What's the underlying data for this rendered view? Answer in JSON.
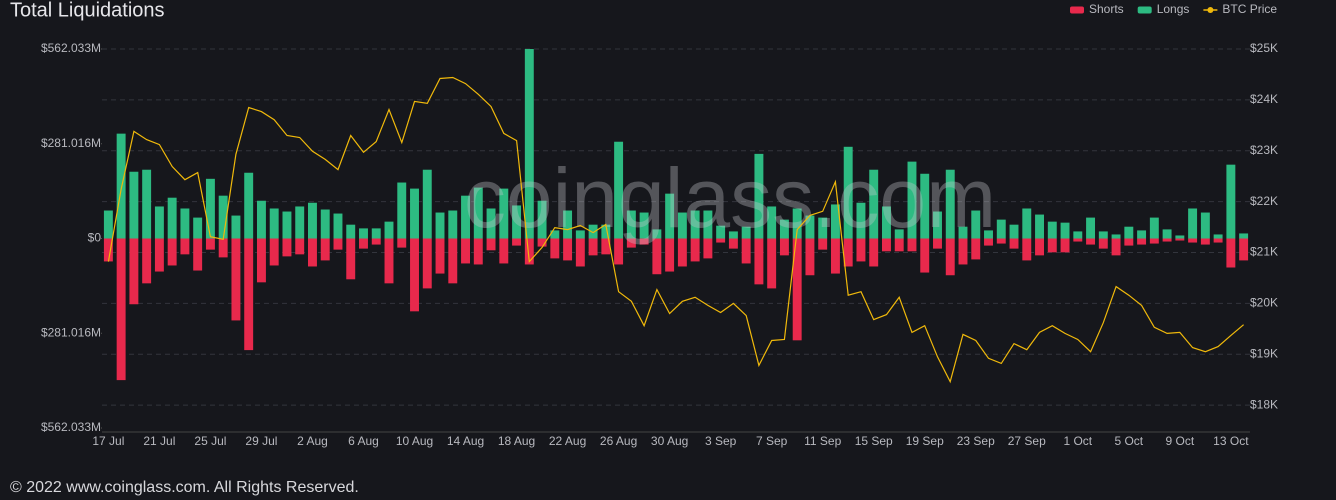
{
  "chart_data": {
    "type": "bar",
    "title": "Total Liquidations",
    "watermark": "coinglass.com",
    "footer": "© 2022 www.coinglass.com. All Rights Reserved.",
    "categories": [
      "17 Jul",
      null,
      null,
      null,
      "21 Jul",
      null,
      null,
      null,
      "25 Jul",
      null,
      null,
      null,
      "29 Jul",
      null,
      null,
      null,
      "2 Aug",
      null,
      null,
      null,
      "6 Aug",
      null,
      null,
      null,
      "10 Aug",
      null,
      null,
      null,
      "14 Aug",
      null,
      null,
      null,
      "18 Aug",
      null,
      null,
      null,
      "22 Aug",
      null,
      null,
      null,
      "26 Aug",
      null,
      null,
      null,
      "30 Aug",
      null,
      null,
      null,
      "3 Sep",
      null,
      null,
      null,
      "7 Sep",
      null,
      null,
      null,
      "11 Sep",
      null,
      null,
      null,
      "15 Sep",
      null,
      null,
      null,
      "19 Sep",
      null,
      null,
      null,
      "23 Sep",
      null,
      null,
      null,
      "27 Sep",
      null,
      null,
      null,
      "1 Oct",
      null,
      null,
      null,
      "5 Oct",
      null,
      null,
      null,
      "9 Oct",
      null,
      null,
      null,
      "13 Oct",
      null
    ],
    "series": [
      {
        "name": "Shorts",
        "color": "#e8294c",
        "values": [
          -68,
          -420,
          -195,
          -133,
          -98,
          -80,
          -47,
          -95,
          -33,
          -56,
          -243,
          -331,
          -130,
          -80,
          -53,
          -47,
          -83,
          -65,
          -33,
          -121,
          -30,
          -18,
          -133,
          -27,
          -216,
          -148,
          -104,
          -133,
          -74,
          -77,
          -35,
          -74,
          -21,
          -77,
          -24,
          -59,
          -65,
          -83,
          -50,
          -47,
          -77,
          -27,
          -18,
          -106,
          -98,
          -83,
          -68,
          -59,
          -12,
          -30,
          -74,
          -136,
          -148,
          -50,
          -302,
          -109,
          -33,
          -104,
          -83,
          -68,
          -83,
          -38,
          -38,
          -38,
          -101,
          -30,
          -109,
          -77,
          -62,
          -21,
          -15,
          -30,
          -65,
          -50,
          -41,
          -41,
          -9,
          -18,
          -30,
          -50,
          -21,
          -18,
          -15,
          -9,
          -6,
          -12,
          -18,
          -12,
          -86,
          -65
        ]
      },
      {
        "name": "Longs",
        "color": "#2dbb82",
        "values": [
          83,
          311,
          198,
          204,
          95,
          121,
          89,
          62,
          177,
          127,
          68,
          195,
          112,
          89,
          80,
          95,
          106,
          86,
          74,
          41,
          30,
          30,
          50,
          166,
          148,
          204,
          77,
          83,
          127,
          151,
          89,
          148,
          98,
          562,
          112,
          24,
          83,
          24,
          41,
          41,
          287,
          83,
          77,
          27,
          133,
          77,
          83,
          83,
          38,
          21,
          35,
          251,
          95,
          56,
          89,
          68,
          62,
          101,
          272,
          106,
          204,
          95,
          27,
          228,
          192,
          80,
          204,
          35,
          83,
          24,
          56,
          41,
          89,
          71,
          50,
          47,
          21,
          62,
          21,
          12,
          35,
          24,
          62,
          27,
          9,
          89,
          77,
          12,
          219,
          15
        ]
      },
      {
        "name": "BTC Price",
        "color": "#f0b90b",
        "type": "line",
        "axis": "y2",
        "values": [
          20820,
          22240,
          23380,
          23220,
          23120,
          22690,
          22430,
          22570,
          21310,
          21260,
          22930,
          23850,
          23770,
          23610,
          23300,
          23260,
          22990,
          22830,
          22630,
          23300,
          22970,
          23180,
          23810,
          23160,
          23970,
          23930,
          24420,
          24440,
          24320,
          24110,
          23870,
          23340,
          23200,
          20820,
          21100,
          21490,
          21450,
          21530,
          21390,
          21550,
          20230,
          20040,
          19560,
          20270,
          19800,
          20040,
          20120,
          19960,
          19820,
          20000,
          19760,
          18780,
          19270,
          19290,
          21450,
          21730,
          21810,
          22390,
          20160,
          20230,
          19680,
          19780,
          20120,
          19430,
          19560,
          18950,
          18460,
          19390,
          19270,
          18920,
          18820,
          19210,
          19090,
          19430,
          19560,
          19410,
          19290,
          19050,
          19620,
          20330,
          20160,
          19960,
          19530,
          19410,
          19430,
          19130,
          19050,
          19150,
          19370,
          19580
        ]
      }
    ],
    "ylim": [
      -562.033,
      562.033
    ],
    "yticks": [
      {
        "value": -562.033,
        "label": "$562.033M"
      },
      {
        "value": -281.016,
        "label": "$281.016M"
      },
      {
        "value": 0,
        "label": "$0"
      },
      {
        "value": 281.016,
        "label": "$281.016M"
      },
      {
        "value": 562.033,
        "label": "$562.033M"
      }
    ],
    "y2lim": [
      17550,
      25000
    ],
    "y2ticks": [
      {
        "value": 18000,
        "label": "$18K"
      },
      {
        "value": 19000,
        "label": "$19K"
      },
      {
        "value": 20000,
        "label": "$20K"
      },
      {
        "value": 21000,
        "label": "$21K"
      },
      {
        "value": 22000,
        "label": "$22K"
      },
      {
        "value": 23000,
        "label": "$23K"
      },
      {
        "value": 24000,
        "label": "$24K"
      },
      {
        "value": 25000,
        "label": "$25K"
      }
    ],
    "grid": true,
    "legend": "top-right"
  }
}
